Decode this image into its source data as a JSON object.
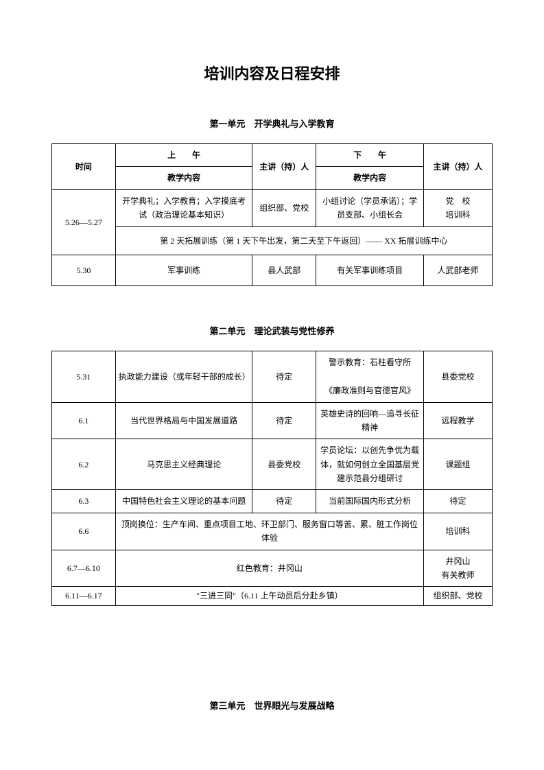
{
  "page_title": "培训内容及日程安排",
  "colors": {
    "text": "#000000",
    "background": "#ffffff",
    "border": "#000000"
  },
  "fonts": {
    "body_size": 12,
    "title_size": 22,
    "unit_title_size": 13
  },
  "unit1": {
    "title": "第一单元　开学典礼与入学教育",
    "header": {
      "time": "时间",
      "am": "上　　午",
      "am_sub": "教学内容",
      "host1": "主讲（持）人",
      "pm": "下　　午",
      "pm_sub": "教学内容",
      "host2": "主讲（持）人"
    },
    "rows": [
      {
        "time": "5.26—5.27",
        "am": "开学典礼；入学教育；入学摸底考试（政治理论基本知识）",
        "host1": "组织部、党校",
        "pm": "小组讨论（学员承诺）；学员支部、小组长会",
        "host2": "党　校\n培训科"
      },
      {
        "merged": "第 2 天拓展训练（第 1 天下午出发，第二天至下午返回）—— XX 拓展训练中心"
      },
      {
        "time": "5.30",
        "am": "军事训练",
        "host1": "县人武部",
        "pm": "有关军事训练项目",
        "host2": "人武部老师"
      }
    ]
  },
  "unit2": {
    "title": "第二单元　理论武装与党性修养",
    "rows": [
      {
        "time": "5.31",
        "am": "执政能力建设（或年轻干部的成长）",
        "host1": "待定",
        "pm": "警示教育：石柱看守所\n\n《廉政准则与官德官风》",
        "host2": "县委党校"
      },
      {
        "time": "6.1",
        "am": "当代世界格局与中国发展道路",
        "host1": "待定",
        "pm": "英雄史诗的回响—追寻长征精神",
        "host2": "远程教学"
      },
      {
        "time": "6.2",
        "am": "马克思主义经典理论",
        "host1": "县委党校",
        "pm": "学员论坛：以创先争优为载体，就如何创立全国基层党建示范县分组研讨",
        "host2": "课题组"
      },
      {
        "time": "6.3",
        "am": "中国特色社会主义理论的基本问题",
        "host1": "待定",
        "pm": "当前国际国内形式分析",
        "host2": "待定"
      },
      {
        "time": "6.6",
        "merged_mid": "顶岗换位：生产车间、重点项目工地、环卫部门、服务窗口等苦、累、脏工作岗位体验",
        "host2": "培训科"
      },
      {
        "time": "6.7—6.10",
        "merged_mid": "红色教育：井冈山",
        "host2": "井冈山\n有关教师"
      },
      {
        "time": "6.11—6.17",
        "merged_mid": "\"三进三同\"（6.11 上午动员后分赴乡镇）",
        "host2": "组织部、党校"
      }
    ]
  },
  "unit3": {
    "title": "第三单元　世界眼光与发展战略"
  }
}
